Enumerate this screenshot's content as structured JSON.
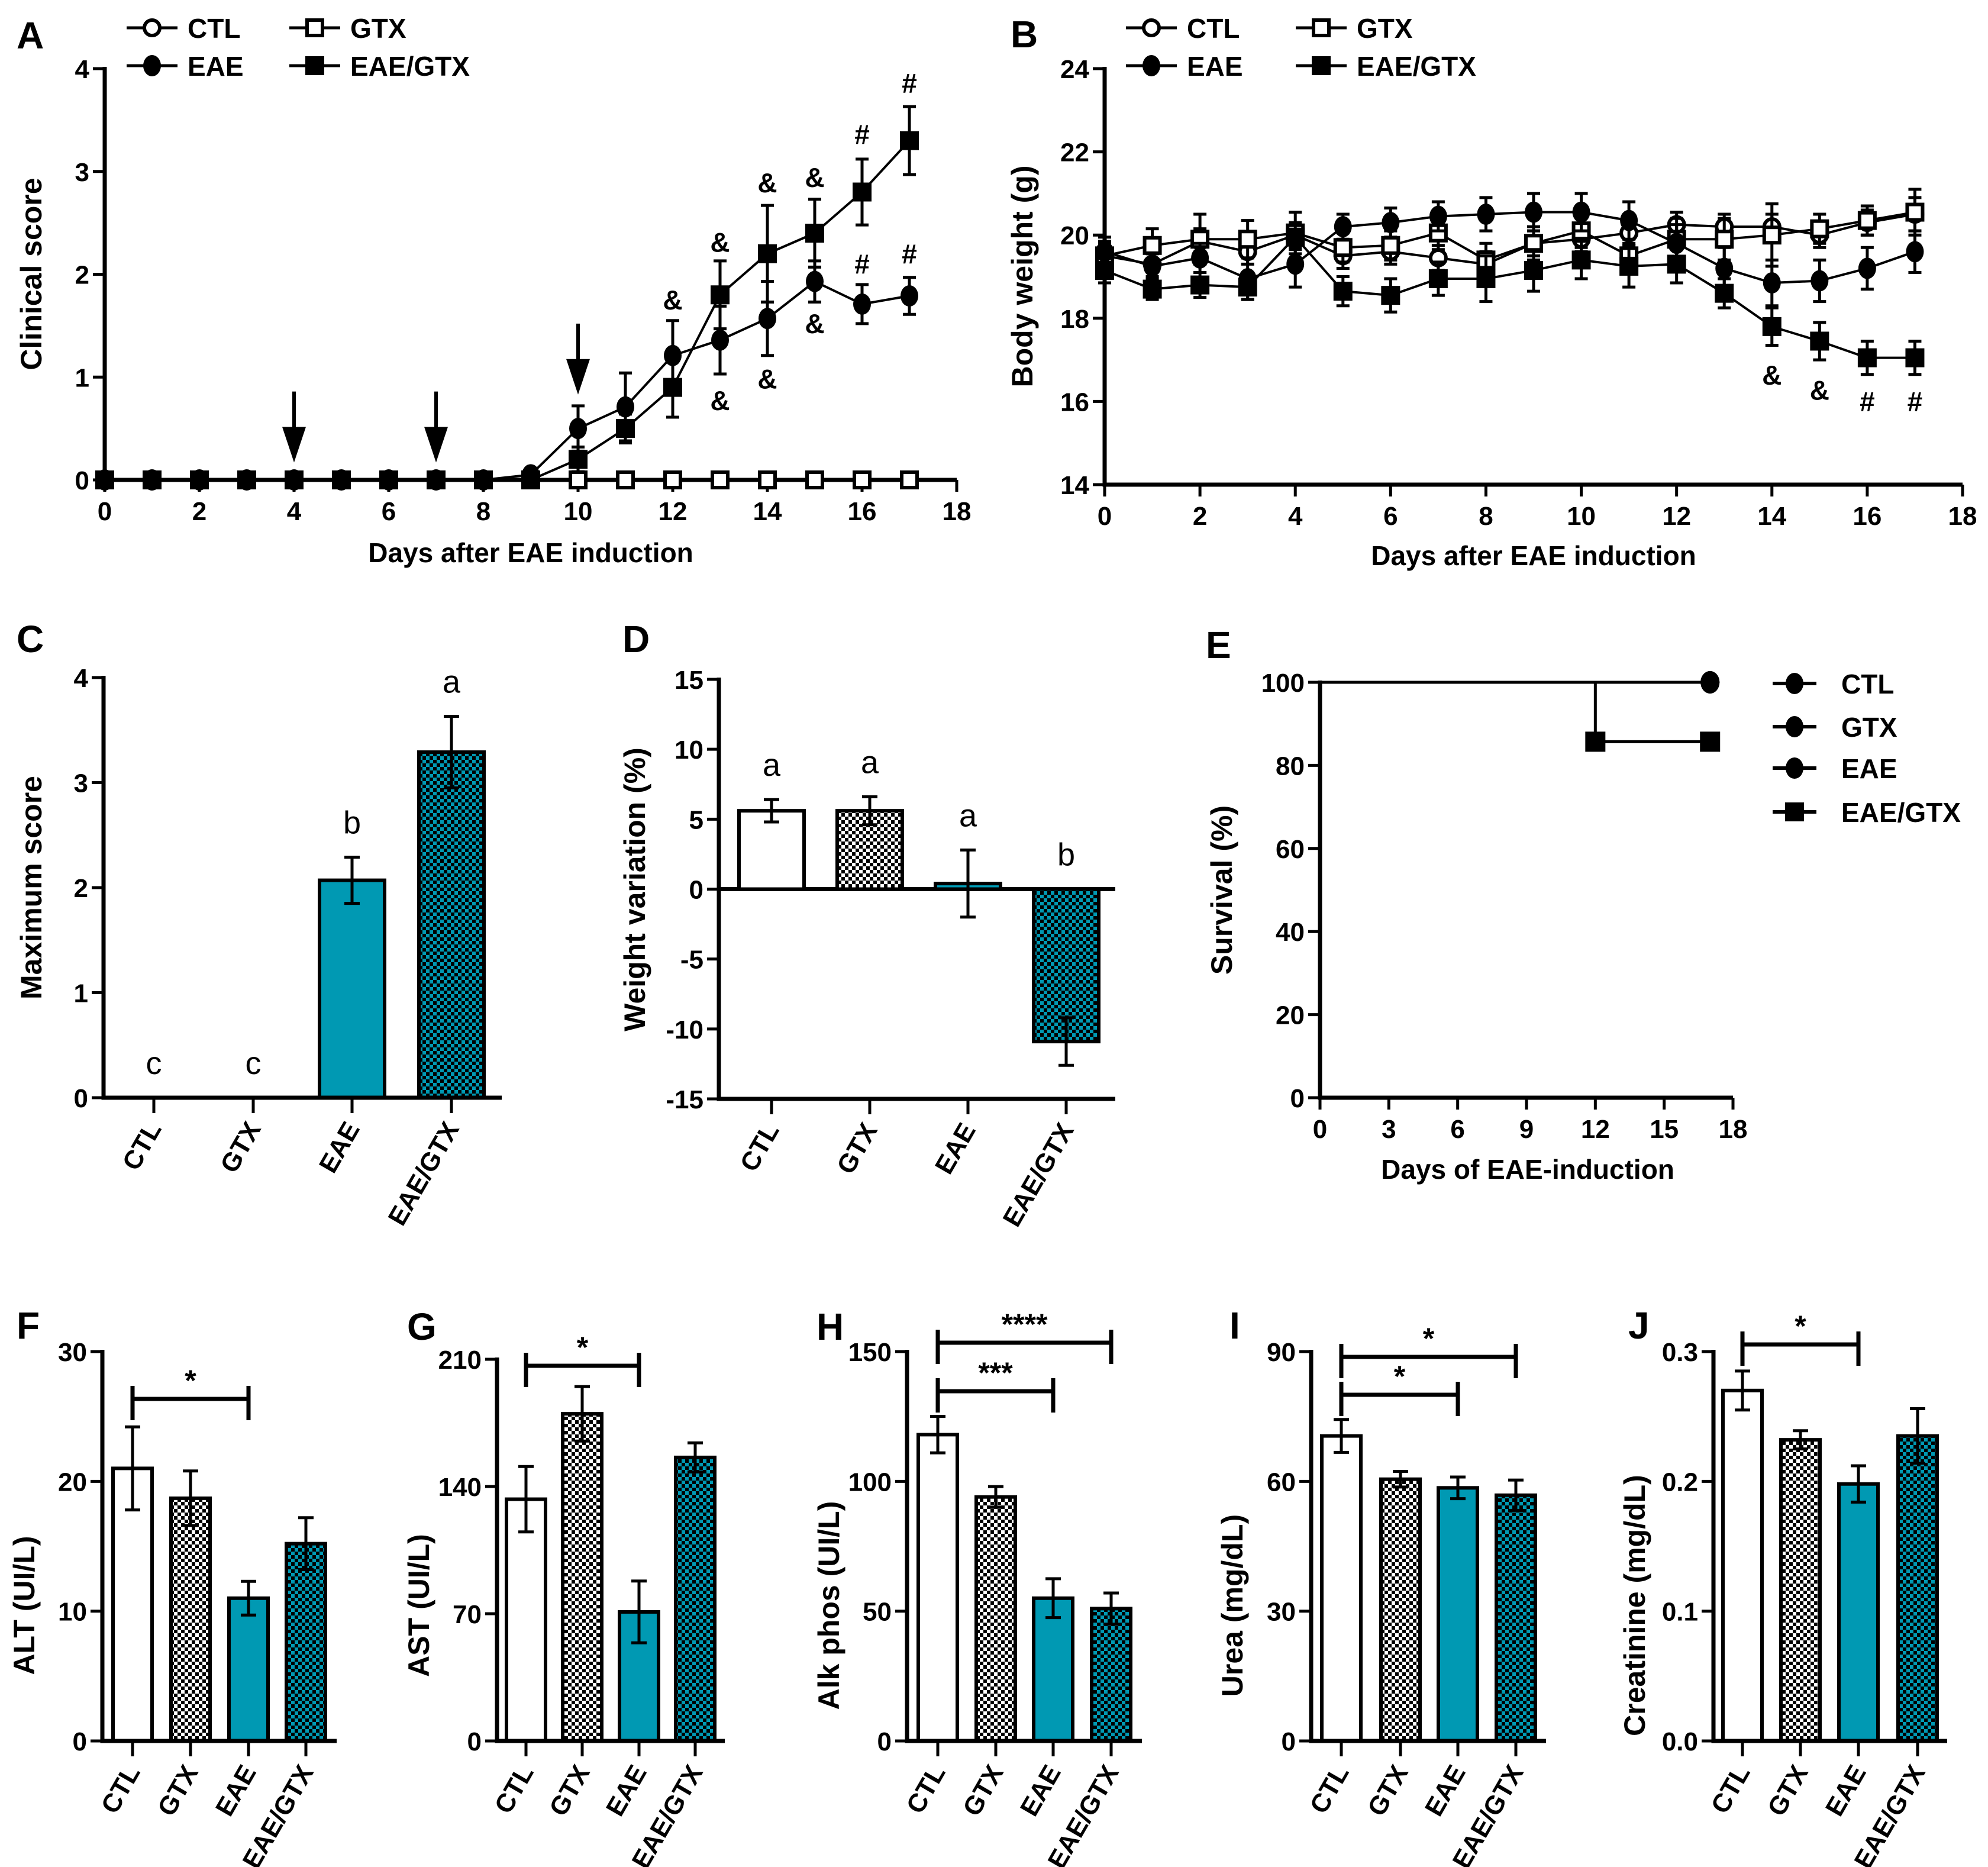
{
  "colors": {
    "teal": "#0099b3",
    "black": "#000000",
    "white": "#ffffff"
  },
  "chart_data": [
    {
      "panel_label": "A",
      "type": "line",
      "xlabel": "Days after EAE induction",
      "ylabel": "Clinical score",
      "xlim": [
        0,
        18
      ],
      "xticks": [
        0,
        2,
        4,
        6,
        8,
        10,
        12,
        14,
        16,
        18
      ],
      "ylim": [
        0,
        4
      ],
      "yticks": [
        "0",
        "1",
        "2",
        "3",
        "4"
      ],
      "x": [
        0,
        1,
        2,
        3,
        4,
        5,
        6,
        7,
        8,
        9,
        10,
        11,
        12,
        13,
        14,
        15,
        16,
        17
      ],
      "series": [
        {
          "name": "CTL",
          "marker": "open-circle",
          "y": [
            0,
            0,
            0,
            0,
            0,
            0,
            0,
            0,
            0,
            0,
            0,
            0,
            0,
            0,
            0,
            0,
            0,
            0
          ],
          "err": [
            0,
            0,
            0,
            0,
            0,
            0,
            0,
            0,
            0,
            0,
            0,
            0,
            0,
            0,
            0,
            0,
            0,
            0
          ]
        },
        {
          "name": "GTX",
          "marker": "open-square",
          "y": [
            0,
            0,
            0,
            0,
            0,
            0,
            0,
            0,
            0,
            0,
            0,
            0,
            0,
            0,
            0,
            0,
            0,
            0
          ],
          "err": [
            0,
            0,
            0,
            0,
            0,
            0,
            0,
            0,
            0,
            0,
            0,
            0,
            0,
            0,
            0,
            0,
            0,
            0
          ]
        },
        {
          "name": "EAE",
          "marker": "filled-circle",
          "y": [
            0,
            0,
            0,
            0,
            0,
            0,
            0,
            0,
            0,
            0.05,
            0.5,
            0.71,
            1.21,
            1.36,
            1.57,
            1.93,
            1.71,
            1.79
          ],
          "err": [
            0,
            0,
            0,
            0,
            0,
            0,
            0,
            0,
            0,
            0,
            0.22,
            0.33,
            0.34,
            0.33,
            0.36,
            0.2,
            0.19,
            0.18
          ]
        },
        {
          "name": "EAE/GTX",
          "marker": "filled-square",
          "y": [
            0,
            0,
            0,
            0,
            0,
            0,
            0,
            0,
            0,
            0,
            0.2,
            0.5,
            0.9,
            1.8,
            2.2,
            2.4,
            2.8,
            3.3
          ],
          "err": [
            0,
            0,
            0,
            0,
            0,
            0,
            0,
            0,
            0,
            0,
            0.12,
            0.14,
            0.29,
            0.33,
            0.47,
            0.33,
            0.32,
            0.33
          ]
        }
      ],
      "arrows_at_days": [
        4,
        7,
        10
      ],
      "annotations": [
        {
          "x": 12,
          "y": 1.75,
          "text": "&"
        },
        {
          "x": 13,
          "y": 2.31,
          "text": "&"
        },
        {
          "x": 14,
          "y": 2.89,
          "text": "&"
        },
        {
          "x": 15,
          "y": 2.94,
          "text": "&"
        },
        {
          "x": 16,
          "y": 3.36,
          "text": "#"
        },
        {
          "x": 17,
          "y": 3.86,
          "text": "#"
        },
        {
          "x": 16,
          "y": 2.1,
          "text": "#"
        },
        {
          "x": 17,
          "y": 2.2,
          "text": "#"
        },
        {
          "x": 13,
          "y": 0.77,
          "text": "&"
        },
        {
          "x": 14,
          "y": 0.98,
          "text": "&"
        },
        {
          "x": 15,
          "y": 1.52,
          "text": "&"
        }
      ]
    },
    {
      "panel_label": "B",
      "type": "line",
      "xlabel": "Days after EAE induction",
      "ylabel": "Body weight (g)",
      "xlim": [
        0,
        18
      ],
      "xticks": [
        0,
        2,
        4,
        6,
        8,
        10,
        12,
        14,
        16,
        18
      ],
      "ylim": [
        14,
        24
      ],
      "yticks": [
        "14",
        "16",
        "18",
        "20",
        "22",
        "24"
      ],
      "x": [
        0,
        1,
        2,
        3,
        4,
        5,
        6,
        7,
        8,
        9,
        10,
        11,
        12,
        13,
        14,
        15,
        16,
        17
      ],
      "series": [
        {
          "name": "CTL",
          "marker": "open-circle",
          "y": [
            19.5,
            19.3,
            19.85,
            19.6,
            20.0,
            19.5,
            19.6,
            19.45,
            19.3,
            19.8,
            19.9,
            20.05,
            20.25,
            20.2,
            20.2,
            20.0,
            20.3,
            20.5
          ],
          "err": [
            0.3,
            0.3,
            0.3,
            0.3,
            0.3,
            0.3,
            0.3,
            0.3,
            0.3,
            0.3,
            0.3,
            0.3,
            0.3,
            0.3,
            0.3,
            0.3,
            0.3,
            0.4
          ]
        },
        {
          "name": "GTX",
          "marker": "open-square",
          "y": [
            19.5,
            19.75,
            19.9,
            19.9,
            20.05,
            19.7,
            19.75,
            20.05,
            19.4,
            19.8,
            20.1,
            19.5,
            19.9,
            19.9,
            20.0,
            20.15,
            20.35,
            20.55
          ],
          "err": [
            0.35,
            0.4,
            0.6,
            0.45,
            0.5,
            0.35,
            0.35,
            0.4,
            0.4,
            0.4,
            0.4,
            0.3,
            0.5,
            0.5,
            0.75,
            0.35,
            0.35,
            0.55
          ]
        },
        {
          "name": "EAE",
          "marker": "filled-circle",
          "y": [
            19.6,
            19.25,
            19.45,
            18.95,
            19.3,
            20.2,
            20.3,
            20.45,
            20.5,
            20.55,
            20.55,
            20.35,
            19.8,
            19.2,
            18.85,
            18.9,
            19.2,
            19.6
          ],
          "err": [
            0.35,
            0.3,
            0.35,
            0.5,
            0.55,
            0.3,
            0.35,
            0.35,
            0.4,
            0.45,
            0.45,
            0.45,
            0.45,
            0.5,
            0.55,
            0.5,
            0.5,
            0.5
          ]
        },
        {
          "name": "EAE/GTX",
          "marker": "filled-square",
          "y": [
            19.15,
            18.7,
            18.8,
            18.75,
            19.95,
            18.65,
            18.55,
            18.95,
            18.95,
            19.15,
            19.4,
            19.25,
            19.3,
            18.6,
            17.8,
            17.45,
            17.05,
            17.05
          ],
          "err": [
            0.3,
            0.25,
            0.3,
            0.3,
            0.3,
            0.35,
            0.4,
            0.4,
            0.55,
            0.5,
            0.45,
            0.5,
            0.45,
            0.35,
            0.45,
            0.45,
            0.4,
            0.4
          ]
        }
      ],
      "annotations": [
        {
          "x": 14,
          "y": 16.63,
          "text": "&"
        },
        {
          "x": 15,
          "y": 16.27,
          "text": "&"
        },
        {
          "x": 16,
          "y": 16.0,
          "text": "#"
        },
        {
          "x": 17,
          "y": 16.0,
          "text": "#"
        }
      ]
    },
    {
      "panel_label": "C",
      "type": "bar",
      "ylabel": "Maximum score",
      "ylim": [
        0,
        4
      ],
      "yticks": [
        "0",
        "1",
        "2",
        "3",
        "4"
      ],
      "categories": [
        "CTL",
        "GTX",
        "EAE",
        "EAE/GTX"
      ],
      "values": [
        0,
        0,
        2.07,
        3.29
      ],
      "err": [
        0,
        0,
        0.22,
        0.34
      ],
      "fills": [
        "white",
        "checker-white",
        "teal",
        "checker-teal"
      ],
      "group_letters": [
        "c",
        "c",
        "b",
        "a"
      ]
    },
    {
      "panel_label": "D",
      "type": "bar",
      "ylabel": "Weight variation (%)",
      "ylim": [
        -15,
        15
      ],
      "yticks": [
        "-15",
        "-10",
        "-5",
        "0",
        "5",
        "10",
        "15"
      ],
      "categories": [
        "CTL",
        "GTX",
        "EAE",
        "EAE/GTX"
      ],
      "values": [
        5.6,
        5.6,
        0.4,
        -10.9
      ],
      "err": [
        0.8,
        1.0,
        2.4,
        1.7
      ],
      "fills": [
        "white",
        "checker-white",
        "teal",
        "checker-teal"
      ],
      "group_letters": [
        "a",
        "a",
        "a",
        "b"
      ]
    },
    {
      "panel_label": "E",
      "type": "line",
      "subtype": "survival",
      "xlabel": "Days of EAE-induction",
      "ylabel": "Survival (%)",
      "xlim": [
        0,
        18
      ],
      "xticks": [
        0,
        3,
        6,
        9,
        12,
        15,
        18
      ],
      "ylim": [
        0,
        100
      ],
      "yticks": [
        "0",
        "20",
        "40",
        "60",
        "80",
        "100"
      ],
      "series": [
        {
          "name": "CTL",
          "marker": "filled-circle",
          "x": [
            0,
            17
          ],
          "y": [
            100,
            100
          ]
        },
        {
          "name": "GTX",
          "marker": "filled-circle",
          "x": [
            0,
            17
          ],
          "y": [
            100,
            100
          ]
        },
        {
          "name": "EAE",
          "marker": "filled-circle",
          "x": [
            0,
            17
          ],
          "y": [
            100,
            100
          ]
        },
        {
          "name": "EAE/GTX",
          "marker": "filled-square",
          "x": [
            0,
            12,
            17
          ],
          "y": [
            100,
            85.7,
            85.7
          ]
        }
      ],
      "legend_placement": "right"
    },
    {
      "panel_label": "F",
      "type": "bar",
      "ylabel": "ALT (UI/L)",
      "ylim": [
        0,
        30
      ],
      "yticks": [
        "0",
        "10",
        "20",
        "30"
      ],
      "categories": [
        "CTL",
        "GTX",
        "EAE",
        "EAE/GTX"
      ],
      "values": [
        21.0,
        18.7,
        11.0,
        15.2
      ],
      "err": [
        3.2,
        2.1,
        1.3,
        2.0
      ],
      "fills": [
        "white",
        "checker-white",
        "teal",
        "checker-teal"
      ],
      "significance": [
        {
          "from": "CTL",
          "to": "EAE",
          "text": "*"
        }
      ]
    },
    {
      "panel_label": "G",
      "type": "bar",
      "ylabel": "AST (UI/L)",
      "ylim": [
        0,
        210
      ],
      "yticks": [
        "0",
        "70",
        "140",
        "210"
      ],
      "categories": [
        "CTL",
        "GTX",
        "EAE",
        "EAE/GTX"
      ],
      "values": [
        133,
        180,
        71,
        156
      ],
      "err": [
        18,
        15,
        17,
        8
      ],
      "fills": [
        "white",
        "checker-white",
        "teal",
        "checker-teal"
      ],
      "significance": [
        {
          "from": "CTL",
          "to": "EAE",
          "text": "*"
        }
      ]
    },
    {
      "panel_label": "H",
      "type": "bar",
      "ylabel": "Alk phos (UI/L)",
      "ylim": [
        0,
        150
      ],
      "yticks": [
        "0",
        "50",
        "100",
        "150"
      ],
      "categories": [
        "CTL",
        "GTX",
        "EAE",
        "EAE/GTX"
      ],
      "values": [
        118,
        94,
        55,
        51
      ],
      "err": [
        7,
        4,
        7.5,
        6
      ],
      "fills": [
        "white",
        "checker-white",
        "teal",
        "checker-teal"
      ],
      "significance": [
        {
          "from": "CTL",
          "to": "EAE",
          "text": "***"
        },
        {
          "from": "CTL",
          "to": "EAE/GTX",
          "text": "****"
        }
      ]
    },
    {
      "panel_label": "I",
      "type": "bar",
      "ylabel": "Urea (mg/dL)",
      "ylim": [
        0,
        90
      ],
      "yticks": [
        "0",
        "30",
        "60",
        "90"
      ],
      "categories": [
        "CTL",
        "GTX",
        "EAE",
        "EAE/GTX"
      ],
      "values": [
        70.5,
        60.5,
        58.5,
        56.8
      ],
      "err": [
        3.8,
        1.8,
        2.5,
        3.5
      ],
      "fills": [
        "white",
        "checker-white",
        "teal",
        "checker-teal"
      ],
      "significance": [
        {
          "from": "CTL",
          "to": "EAE",
          "text": "*"
        },
        {
          "from": "CTL",
          "to": "EAE/GTX",
          "text": "*"
        }
      ]
    },
    {
      "panel_label": "J",
      "type": "bar",
      "ylabel": "Creatinine (mg/dL)",
      "ylim": [
        0,
        0.3
      ],
      "yticks": [
        "0.0",
        "0.1",
        "0.2",
        "0.3"
      ],
      "categories": [
        "CTL",
        "GTX",
        "EAE",
        "EAE/GTX"
      ],
      "values": [
        0.27,
        0.232,
        0.198,
        0.235
      ],
      "err": [
        0.015,
        0.007,
        0.014,
        0.021
      ],
      "fills": [
        "white",
        "checker-white",
        "teal",
        "checker-teal"
      ],
      "significance": [
        {
          "from": "CTL",
          "to": "EAE",
          "text": "*"
        }
      ]
    }
  ]
}
